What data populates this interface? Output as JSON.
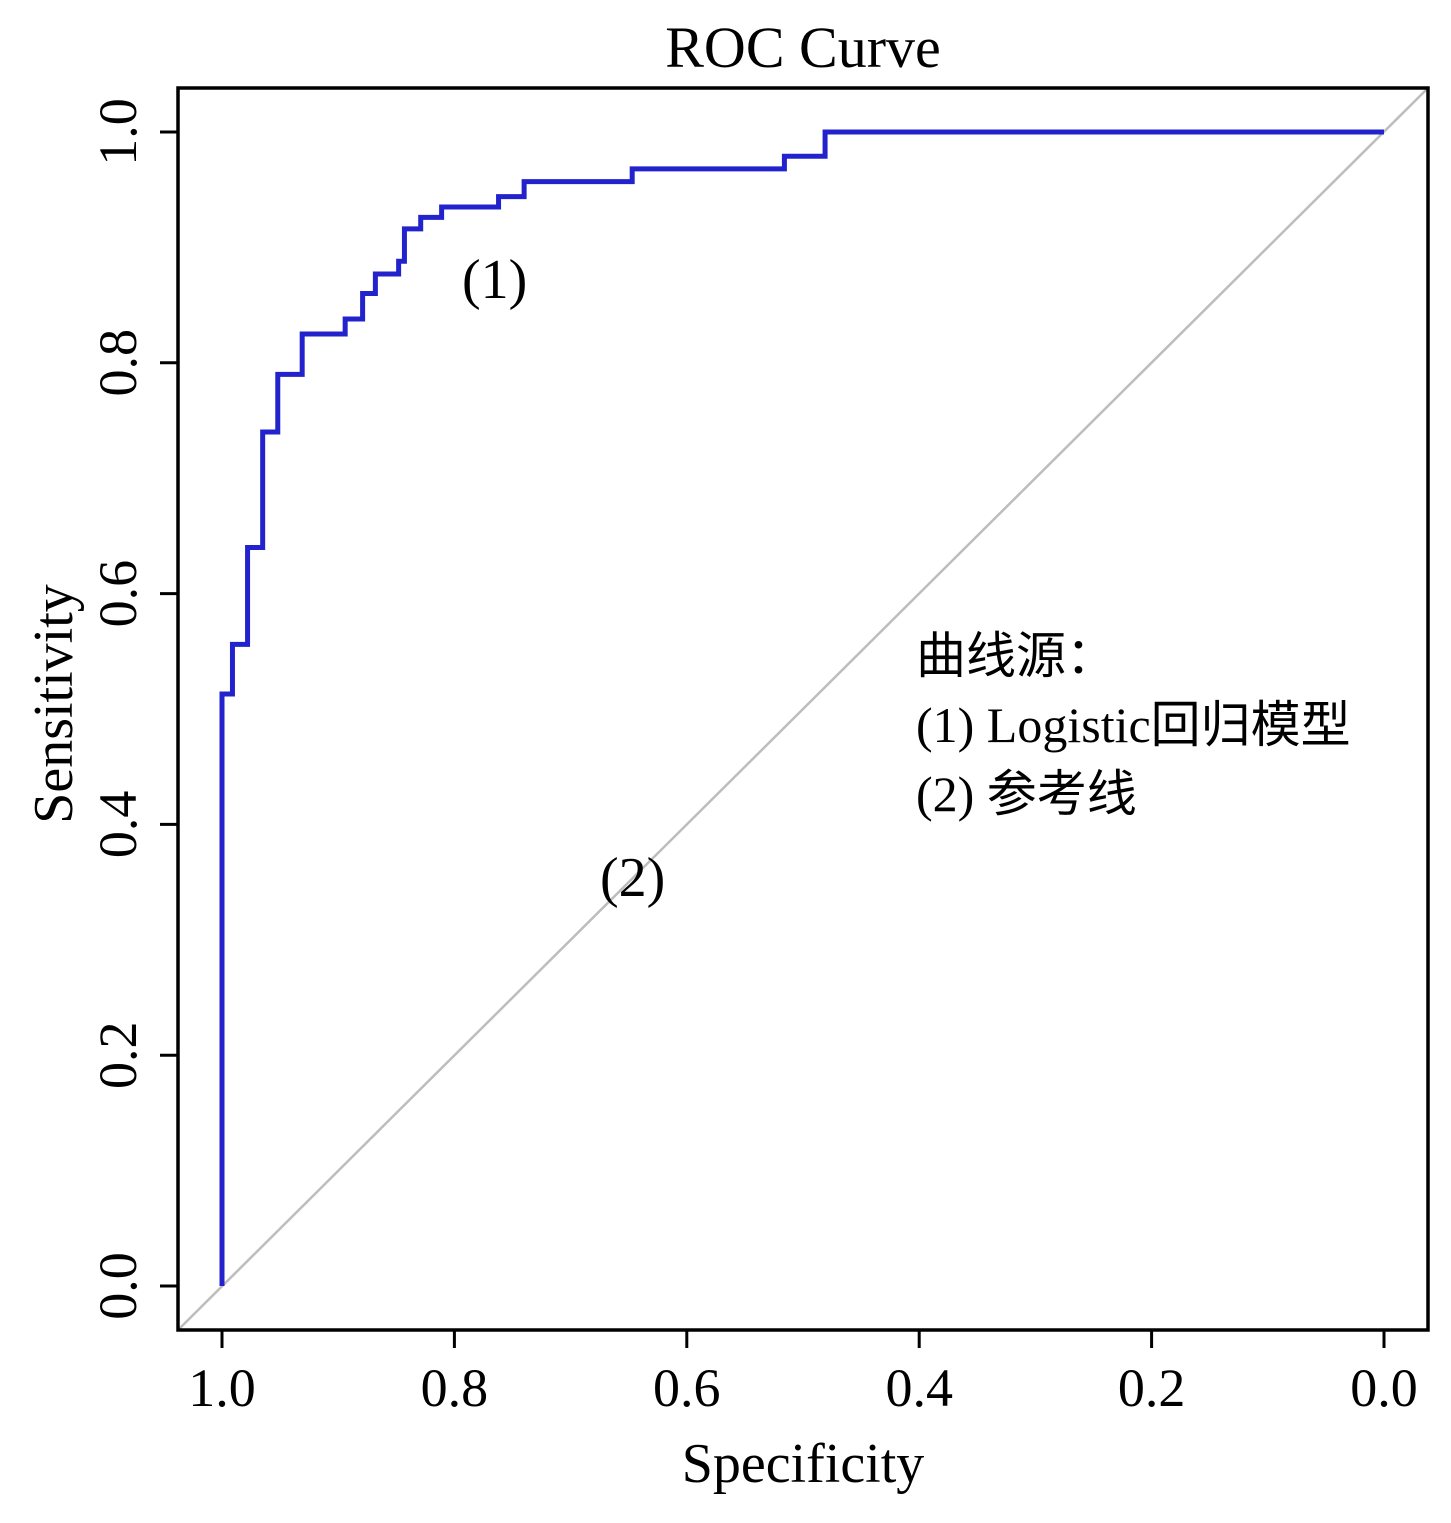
{
  "chart_data": {
    "type": "line",
    "title": "ROC Curve",
    "xlabel": "Specificity",
    "ylabel": "Sensitivity",
    "x_range": [
      1.0,
      0.0
    ],
    "y_range": [
      0.0,
      1.0
    ],
    "x_axis_reversed": true,
    "grid": false,
    "x_ticks": [
      "1.0",
      "0.8",
      "0.6",
      "0.4",
      "0.2",
      "0.0"
    ],
    "y_ticks": [
      "0.0",
      "0.2",
      "0.4",
      "0.6",
      "0.8",
      "1.0"
    ],
    "colors": {
      "curve": "#2323cd",
      "reference": "#bdbdbd",
      "frame": "#000000"
    },
    "series": [
      {
        "name": "Logistic回归模型",
        "label": "(1)",
        "style": "step",
        "color_key": "curve",
        "points": [
          [
            1.0,
            0.0
          ],
          [
            1.0,
            0.513
          ],
          [
            0.991,
            0.513
          ],
          [
            0.991,
            0.556
          ],
          [
            0.978,
            0.556
          ],
          [
            0.978,
            0.64
          ],
          [
            0.965,
            0.64
          ],
          [
            0.965,
            0.74
          ],
          [
            0.952,
            0.74
          ],
          [
            0.952,
            0.79
          ],
          [
            0.931,
            0.79
          ],
          [
            0.931,
            0.825
          ],
          [
            0.894,
            0.825
          ],
          [
            0.894,
            0.838
          ],
          [
            0.879,
            0.838
          ],
          [
            0.879,
            0.86
          ],
          [
            0.868,
            0.86
          ],
          [
            0.868,
            0.877
          ],
          [
            0.848,
            0.877
          ],
          [
            0.848,
            0.888
          ],
          [
            0.843,
            0.888
          ],
          [
            0.843,
            0.916
          ],
          [
            0.829,
            0.916
          ],
          [
            0.829,
            0.926
          ],
          [
            0.811,
            0.926
          ],
          [
            0.811,
            0.935
          ],
          [
            0.762,
            0.935
          ],
          [
            0.762,
            0.944
          ],
          [
            0.74,
            0.944
          ],
          [
            0.74,
            0.957
          ],
          [
            0.647,
            0.957
          ],
          [
            0.647,
            0.968
          ],
          [
            0.516,
            0.968
          ],
          [
            0.516,
            0.979
          ],
          [
            0.481,
            0.979
          ],
          [
            0.481,
            1.0
          ],
          [
            0.0,
            1.0
          ]
        ]
      },
      {
        "name": "参考线",
        "label": "(2)",
        "style": "straight",
        "color_key": "reference",
        "points": [
          [
            1.0,
            0.0
          ],
          [
            0.0,
            1.0
          ]
        ]
      }
    ],
    "legend": {
      "header": "曲线源：",
      "items": [
        "(1)  Logistic回归模型",
        "(2) 参考线"
      ]
    },
    "annotations": [
      {
        "label": "(1)"
      },
      {
        "label": "(2)"
      }
    ]
  }
}
